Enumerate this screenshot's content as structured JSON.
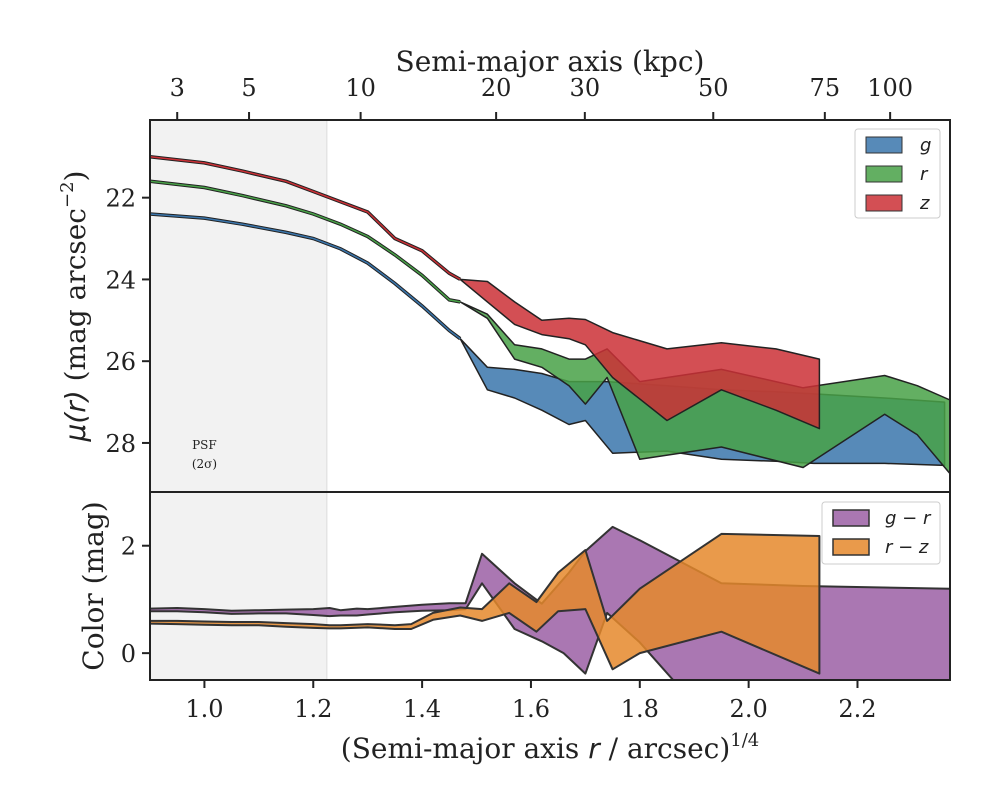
{
  "chart_data": [
    {
      "type": "area",
      "panel": "surface-brightness",
      "title": "",
      "top_axis_label": "Semi-major axis (kpc)",
      "top_ticks": [
        {
          "label": "3",
          "x": 0.95
        },
        {
          "label": "5",
          "x": 1.082
        },
        {
          "label": "10",
          "x": 1.287
        },
        {
          "label": "20",
          "x": 1.536
        },
        {
          "label": "30",
          "x": 1.699
        },
        {
          "label": "50",
          "x": 1.935
        },
        {
          "label": "75",
          "x": 2.14
        },
        {
          "label": "100",
          "x": 2.26
        }
      ],
      "ylabel": "μ(r) (mag arcsec⁻²)",
      "ylim": [
        29.2,
        20.1
      ],
      "yticks": [
        22,
        24,
        26,
        28
      ],
      "xlim": [
        0.9,
        2.37
      ],
      "psf_region": {
        "x_end": 1.225,
        "label_line1": "PSF",
        "label_line2": "(2σ)"
      },
      "series": [
        {
          "name": "g",
          "legend_label": "g",
          "color": "#3a75ab",
          "center": [
            [
              0.9,
              22.4
            ],
            [
              1.0,
              22.5
            ],
            [
              1.07,
              22.65
            ],
            [
              1.15,
              22.85
            ],
            [
              1.2,
              23.0
            ],
            [
              1.25,
              23.25
            ],
            [
              1.3,
              23.6
            ],
            [
              1.35,
              24.1
            ],
            [
              1.4,
              24.65
            ],
            [
              1.45,
              25.25
            ],
            [
              1.47,
              25.45
            ],
            [
              1.52,
              26.3
            ],
            [
              1.57,
              26.4
            ],
            [
              1.62,
              26.7
            ],
            [
              1.67,
              26.9
            ],
            [
              1.7,
              26.9
            ],
            [
              1.74,
              27.1
            ],
            [
              1.85,
              27.4
            ],
            [
              1.95,
              27.5
            ],
            [
              2.05,
              27.6
            ],
            [
              2.12,
              27.55
            ],
            [
              2.25,
              27.7
            ],
            [
              2.35,
              27.75
            ]
          ],
          "lower": [
            [
              1.47,
              25.45
            ],
            [
              1.52,
              26.7
            ],
            [
              1.57,
              26.9
            ],
            [
              1.62,
              27.2
            ],
            [
              1.67,
              27.55
            ],
            [
              1.7,
              27.45
            ],
            [
              1.75,
              28.25
            ],
            [
              1.85,
              28.2
            ],
            [
              1.95,
              28.4
            ],
            [
              2.05,
              28.45
            ],
            [
              2.12,
              28.5
            ],
            [
              2.25,
              28.5
            ],
            [
              2.36,
              28.55
            ]
          ],
          "upper": [
            [
              1.47,
              25.45
            ],
            [
              1.52,
              26.15
            ],
            [
              1.57,
              26.2
            ],
            [
              1.62,
              26.3
            ],
            [
              1.67,
              26.5
            ],
            [
              1.7,
              26.5
            ],
            [
              1.74,
              26.5
            ],
            [
              1.85,
              26.6
            ],
            [
              1.95,
              26.7
            ],
            [
              2.05,
              26.75
            ],
            [
              2.12,
              26.8
            ],
            [
              2.25,
              26.9
            ],
            [
              2.36,
              27.0
            ]
          ]
        },
        {
          "name": "r",
          "legend_label": "r",
          "color": "#48a147",
          "center": [
            [
              0.9,
              21.6
            ],
            [
              1.0,
              21.75
            ],
            [
              1.07,
              21.95
            ],
            [
              1.15,
              22.2
            ],
            [
              1.2,
              22.4
            ],
            [
              1.25,
              22.65
            ],
            [
              1.3,
              22.95
            ],
            [
              1.35,
              23.4
            ],
            [
              1.4,
              23.9
            ],
            [
              1.45,
              24.5
            ],
            [
              1.47,
              24.55
            ],
            [
              1.52,
              24.9
            ],
            [
              1.57,
              25.85
            ],
            [
              1.62,
              25.95
            ],
            [
              1.67,
              26.3
            ],
            [
              1.7,
              26.3
            ],
            [
              1.74,
              26.1
            ]
          ],
          "lower": [
            [
              1.47,
              24.55
            ],
            [
              1.52,
              24.95
            ],
            [
              1.57,
              25.95
            ],
            [
              1.62,
              26.15
            ],
            [
              1.67,
              26.6
            ],
            [
              1.7,
              27.05
            ],
            [
              1.74,
              26.4
            ],
            [
              1.8,
              28.4
            ],
            [
              1.95,
              28.1
            ],
            [
              2.1,
              28.6
            ],
            [
              2.25,
              27.3
            ],
            [
              2.31,
              27.8
            ],
            [
              2.37,
              28.75
            ]
          ],
          "upper": [
            [
              1.47,
              24.55
            ],
            [
              1.52,
              24.85
            ],
            [
              1.57,
              25.6
            ],
            [
              1.62,
              25.7
            ],
            [
              1.67,
              25.95
            ],
            [
              1.7,
              25.95
            ],
            [
              1.74,
              25.7
            ],
            [
              1.8,
              26.5
            ],
            [
              1.95,
              26.2
            ],
            [
              2.1,
              26.65
            ],
            [
              2.25,
              26.35
            ],
            [
              2.31,
              26.6
            ],
            [
              2.37,
              26.95
            ]
          ]
        },
        {
          "name": "z",
          "legend_label": "z",
          "color": "#cb3036",
          "center": [
            [
              0.9,
              21.0
            ],
            [
              1.0,
              21.15
            ],
            [
              1.07,
              21.35
            ],
            [
              1.15,
              21.6
            ],
            [
              1.2,
              21.85
            ],
            [
              1.25,
              22.1
            ],
            [
              1.3,
              22.35
            ],
            [
              1.35,
              23.0
            ],
            [
              1.4,
              23.3
            ],
            [
              1.45,
              23.85
            ],
            [
              1.47,
              24.0
            ],
            [
              1.52,
              24.3
            ],
            [
              1.57,
              24.8
            ],
            [
              1.62,
              25.2
            ],
            [
              1.67,
              25.2
            ],
            [
              1.7,
              25.3
            ],
            [
              1.74,
              25.6
            ]
          ],
          "lower": [
            [
              1.47,
              24.0
            ],
            [
              1.52,
              24.55
            ],
            [
              1.57,
              25.1
            ],
            [
              1.62,
              25.35
            ],
            [
              1.67,
              25.45
            ],
            [
              1.7,
              25.6
            ],
            [
              1.75,
              26.4
            ],
            [
              1.85,
              27.45
            ],
            [
              1.95,
              26.7
            ],
            [
              2.05,
              27.2
            ],
            [
              2.13,
              27.65
            ]
          ],
          "upper": [
            [
              1.47,
              24.0
            ],
            [
              1.52,
              24.05
            ],
            [
              1.57,
              24.55
            ],
            [
              1.62,
              25.0
            ],
            [
              1.67,
              24.95
            ],
            [
              1.7,
              24.98
            ],
            [
              1.75,
              25.3
            ],
            [
              1.85,
              25.7
            ],
            [
              1.95,
              25.55
            ],
            [
              2.05,
              25.7
            ],
            [
              2.13,
              25.95
            ]
          ]
        }
      ]
    },
    {
      "type": "area",
      "panel": "color",
      "xlabel": "(Semi-major axis r / arcsec)¹ᐟ⁴",
      "xlabel_main": "(Semi-major axis ",
      "xlabel_var": "r",
      "xlabel_rest": " / arcsec)",
      "xlabel_exp": "1/4",
      "ylabel": "Color (mag)",
      "ylim": [
        -0.5,
        3.0
      ],
      "yticks": [
        0,
        2
      ],
      "xlim": [
        0.9,
        2.37
      ],
      "xticks": [
        {
          "label": "1.0",
          "x": 1.0
        },
        {
          "label": "1.2",
          "x": 1.2
        },
        {
          "label": "1.4",
          "x": 1.4
        },
        {
          "label": "1.6",
          "x": 1.6
        },
        {
          "label": "1.8",
          "x": 1.8
        },
        {
          "label": "2.0",
          "x": 2.0
        },
        {
          "label": "2.2",
          "x": 2.2
        }
      ],
      "series": [
        {
          "name": "g − r",
          "legend_label": "g − r",
          "color": "#9b5fa5",
          "upper": [
            [
              0.9,
              0.83
            ],
            [
              0.95,
              0.84
            ],
            [
              1.0,
              0.82
            ],
            [
              1.05,
              0.79
            ],
            [
              1.1,
              0.8
            ],
            [
              1.15,
              0.81
            ],
            [
              1.2,
              0.82
            ],
            [
              1.23,
              0.84
            ],
            [
              1.25,
              0.8
            ],
            [
              1.28,
              0.83
            ],
            [
              1.3,
              0.82
            ],
            [
              1.35,
              0.86
            ],
            [
              1.4,
              0.9
            ],
            [
              1.45,
              0.93
            ],
            [
              1.48,
              0.93
            ],
            [
              1.51,
              1.85
            ],
            [
              1.57,
              1.3
            ],
            [
              1.62,
              0.92
            ],
            [
              1.67,
              1.5
            ],
            [
              1.7,
              1.9
            ],
            [
              1.75,
              2.35
            ],
            [
              1.8,
              2.1
            ],
            [
              1.95,
              1.3
            ],
            [
              2.1,
              1.25
            ],
            [
              2.37,
              1.2
            ]
          ],
          "lower": [
            [
              0.9,
              0.78
            ],
            [
              0.95,
              0.78
            ],
            [
              1.0,
              0.76
            ],
            [
              1.05,
              0.73
            ],
            [
              1.1,
              0.74
            ],
            [
              1.15,
              0.74
            ],
            [
              1.2,
              0.71
            ],
            [
              1.23,
              0.69
            ],
            [
              1.25,
              0.7
            ],
            [
              1.28,
              0.7
            ],
            [
              1.3,
              0.72
            ],
            [
              1.35,
              0.76
            ],
            [
              1.4,
              0.79
            ],
            [
              1.45,
              0.8
            ],
            [
              1.48,
              0.82
            ],
            [
              1.51,
              1.3
            ],
            [
              1.57,
              0.45
            ],
            [
              1.62,
              0.22
            ],
            [
              1.66,
              0.0
            ],
            [
              1.7,
              -0.38
            ],
            [
              1.74,
              0.75
            ],
            [
              1.8,
              0.2
            ],
            [
              1.87,
              -0.6
            ],
            [
              2.37,
              -0.6
            ]
          ]
        },
        {
          "name": "r − z",
          "legend_label": "r − z",
          "color": "#e5882b",
          "upper": [
            [
              0.9,
              0.6
            ],
            [
              0.95,
              0.6
            ],
            [
              1.0,
              0.59
            ],
            [
              1.05,
              0.58
            ],
            [
              1.1,
              0.58
            ],
            [
              1.15,
              0.56
            ],
            [
              1.2,
              0.54
            ],
            [
              1.23,
              0.52
            ],
            [
              1.25,
              0.52
            ],
            [
              1.3,
              0.54
            ],
            [
              1.35,
              0.52
            ],
            [
              1.38,
              0.54
            ],
            [
              1.42,
              0.75
            ],
            [
              1.47,
              0.85
            ],
            [
              1.51,
              0.82
            ],
            [
              1.56,
              1.3
            ],
            [
              1.61,
              0.95
            ],
            [
              1.65,
              1.5
            ],
            [
              1.7,
              1.92
            ],
            [
              1.74,
              0.6
            ],
            [
              1.8,
              1.2
            ],
            [
              1.95,
              2.22
            ],
            [
              2.13,
              2.18
            ]
          ],
          "lower": [
            [
              0.9,
              0.55
            ],
            [
              0.95,
              0.54
            ],
            [
              1.0,
              0.53
            ],
            [
              1.05,
              0.52
            ],
            [
              1.1,
              0.52
            ],
            [
              1.15,
              0.49
            ],
            [
              1.2,
              0.47
            ],
            [
              1.23,
              0.46
            ],
            [
              1.25,
              0.46
            ],
            [
              1.3,
              0.48
            ],
            [
              1.35,
              0.45
            ],
            [
              1.38,
              0.45
            ],
            [
              1.42,
              0.62
            ],
            [
              1.47,
              0.7
            ],
            [
              1.51,
              0.6
            ],
            [
              1.56,
              0.75
            ],
            [
              1.61,
              0.4
            ],
            [
              1.65,
              0.78
            ],
            [
              1.7,
              0.82
            ],
            [
              1.75,
              -0.3
            ],
            [
              1.8,
              0.0
            ],
            [
              1.95,
              0.4
            ],
            [
              2.13,
              -0.38
            ]
          ]
        }
      ]
    }
  ]
}
